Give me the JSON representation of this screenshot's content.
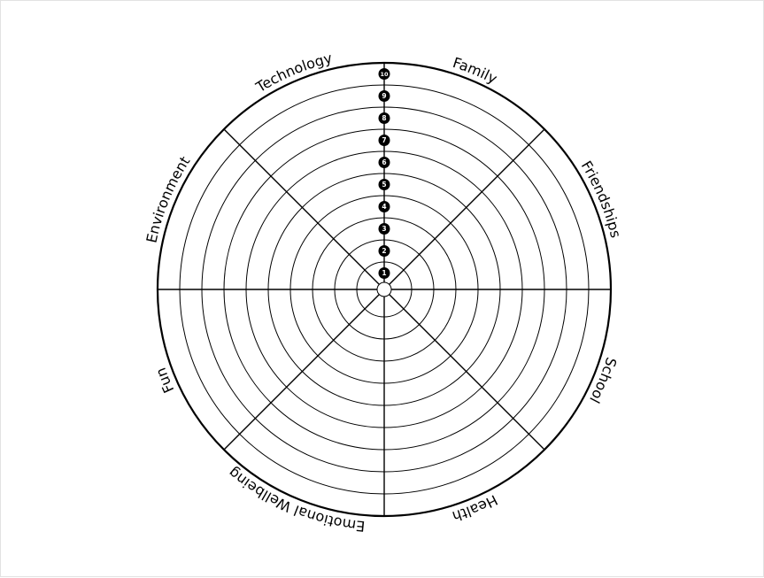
{
  "wheel": {
    "segments": [
      "Family",
      "Friendships",
      "School",
      "Health",
      "Emotional Wellbeing",
      "Fun",
      "Environment",
      "Technology"
    ],
    "scale": [
      "1",
      "2",
      "3",
      "4",
      "5",
      "6",
      "7",
      "8",
      "9",
      "10"
    ],
    "line_color": "#000000",
    "badge_color": "#000000",
    "badge_text_color": "#ffffff"
  }
}
